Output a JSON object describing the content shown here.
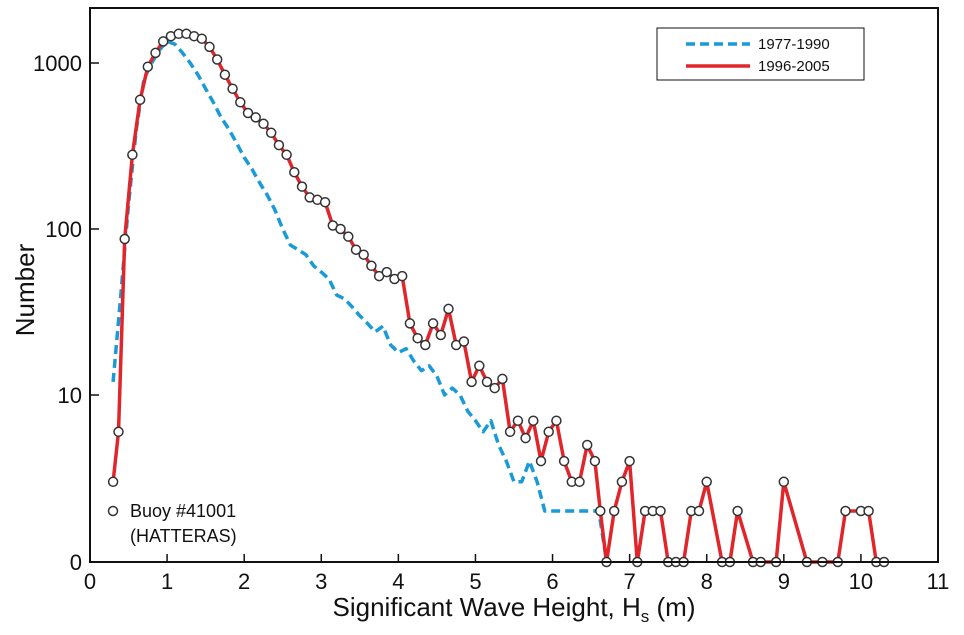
{
  "chart_data": {
    "type": "line",
    "xlabel_main": "Significant Wave Height, H",
    "xlabel_sub": "s",
    "xlabel_unit": " (m)",
    "ylabel": "Number",
    "xlim": [
      0,
      11
    ],
    "x_ticks": [
      0,
      1,
      2,
      3,
      4,
      5,
      6,
      7,
      8,
      9,
      10,
      11
    ],
    "y_scale": "log with zero baseline",
    "y_ticks": [
      {
        "value": 0,
        "label": "0"
      },
      {
        "value": 10,
        "label": "10"
      },
      {
        "value": 100,
        "label": "100"
      },
      {
        "value": 1000,
        "label": "1000"
      }
    ],
    "grid": false,
    "legend": {
      "placement": "top-right"
    },
    "annotation": [
      "Buoy #41001",
      "(HATTERAS)"
    ],
    "colors": {
      "blue": "#1a9ad6",
      "red": "#e0262b",
      "marker_fill": "#ffffff",
      "marker_edge": "#333333",
      "axis": "#111111"
    },
    "series": [
      {
        "name": "1977-1990",
        "style": "dashed",
        "points": [
          [
            0.3,
            12
          ],
          [
            0.4,
            40
          ],
          [
            0.5,
            140
          ],
          [
            0.6,
            400
          ],
          [
            0.7,
            800
          ],
          [
            0.8,
            1000
          ],
          [
            0.9,
            1200
          ],
          [
            1.0,
            1350
          ],
          [
            1.1,
            1300
          ],
          [
            1.2,
            1150
          ],
          [
            1.3,
            1000
          ],
          [
            1.4,
            850
          ],
          [
            1.5,
            700
          ],
          [
            1.6,
            580
          ],
          [
            1.7,
            470
          ],
          [
            1.8,
            400
          ],
          [
            1.9,
            330
          ],
          [
            2.0,
            270
          ],
          [
            2.1,
            230
          ],
          [
            2.2,
            190
          ],
          [
            2.3,
            160
          ],
          [
            2.4,
            130
          ],
          [
            2.5,
            100
          ],
          [
            2.6,
            80
          ],
          [
            2.7,
            75
          ],
          [
            2.8,
            70
          ],
          [
            2.9,
            60
          ],
          [
            3.0,
            55
          ],
          [
            3.1,
            50
          ],
          [
            3.2,
            40
          ],
          [
            3.3,
            38
          ],
          [
            3.4,
            34
          ],
          [
            3.5,
            30
          ],
          [
            3.6,
            27
          ],
          [
            3.7,
            24
          ],
          [
            3.8,
            26
          ],
          [
            3.9,
            20
          ],
          [
            4.0,
            18
          ],
          [
            4.1,
            19
          ],
          [
            4.2,
            16
          ],
          [
            4.3,
            14
          ],
          [
            4.4,
            15
          ],
          [
            4.5,
            13
          ],
          [
            4.6,
            10
          ],
          [
            4.7,
            11
          ],
          [
            4.8,
            10
          ],
          [
            4.9,
            8
          ],
          [
            5.0,
            7
          ],
          [
            5.1,
            6
          ],
          [
            5.2,
            7
          ],
          [
            5.3,
            5
          ],
          [
            5.4,
            4
          ],
          [
            5.5,
            3
          ],
          [
            5.6,
            3
          ],
          [
            5.7,
            4
          ],
          [
            5.8,
            3
          ],
          [
            5.9,
            2
          ],
          [
            6.0,
            2
          ],
          [
            6.1,
            2
          ],
          [
            6.6,
            2
          ],
          [
            6.7,
            1
          ]
        ]
      },
      {
        "name": "1996-2005",
        "style": "solid-with-markers",
        "points": [
          [
            0.3,
            3
          ],
          [
            0.37,
            6
          ],
          [
            0.45,
            87
          ],
          [
            0.55,
            280
          ],
          [
            0.65,
            600
          ],
          [
            0.75,
            950
          ],
          [
            0.85,
            1150
          ],
          [
            0.95,
            1350
          ],
          [
            1.05,
            1450
          ],
          [
            1.15,
            1500
          ],
          [
            1.25,
            1500
          ],
          [
            1.35,
            1450
          ],
          [
            1.45,
            1400
          ],
          [
            1.55,
            1250
          ],
          [
            1.65,
            1050
          ],
          [
            1.75,
            850
          ],
          [
            1.85,
            700
          ],
          [
            1.95,
            580
          ],
          [
            2.05,
            500
          ],
          [
            2.15,
            470
          ],
          [
            2.25,
            430
          ],
          [
            2.35,
            380
          ],
          [
            2.45,
            320
          ],
          [
            2.55,
            280
          ],
          [
            2.65,
            220
          ],
          [
            2.75,
            180
          ],
          [
            2.85,
            155
          ],
          [
            2.95,
            150
          ],
          [
            3.05,
            145
          ],
          [
            3.15,
            105
          ],
          [
            3.25,
            100
          ],
          [
            3.35,
            90
          ],
          [
            3.45,
            75
          ],
          [
            3.55,
            70
          ],
          [
            3.65,
            60
          ],
          [
            3.75,
            52
          ],
          [
            3.85,
            55
          ],
          [
            3.95,
            50
          ],
          [
            4.05,
            52
          ],
          [
            4.15,
            27
          ],
          [
            4.25,
            22
          ],
          [
            4.35,
            20
          ],
          [
            4.45,
            27
          ],
          [
            4.55,
            23
          ],
          [
            4.65,
            33
          ],
          [
            4.75,
            20
          ],
          [
            4.85,
            21
          ],
          [
            4.95,
            12
          ],
          [
            5.05,
            15
          ],
          [
            5.15,
            12
          ],
          [
            5.25,
            11
          ],
          [
            5.35,
            12.5
          ],
          [
            5.45,
            6
          ],
          [
            5.55,
            7
          ],
          [
            5.65,
            5.5
          ],
          [
            5.75,
            7
          ],
          [
            5.85,
            4
          ],
          [
            5.95,
            6
          ],
          [
            6.05,
            7
          ],
          [
            6.15,
            4
          ],
          [
            6.25,
            3
          ],
          [
            6.35,
            3
          ],
          [
            6.45,
            5
          ],
          [
            6.55,
            4
          ],
          [
            6.62,
            2
          ],
          [
            6.7,
            0.5
          ],
          [
            6.8,
            2
          ],
          [
            6.9,
            3
          ],
          [
            7.0,
            4
          ],
          [
            7.1,
            0.5
          ],
          [
            7.2,
            2
          ],
          [
            7.3,
            2
          ],
          [
            7.4,
            2
          ],
          [
            7.5,
            0.5
          ],
          [
            7.6,
            0.5
          ],
          [
            7.7,
            0.5
          ],
          [
            7.8,
            2
          ],
          [
            7.9,
            2
          ],
          [
            8.0,
            3
          ],
          [
            8.2,
            0.5
          ],
          [
            8.3,
            0.5
          ],
          [
            8.4,
            2
          ],
          [
            8.6,
            0.5
          ],
          [
            8.7,
            0.5
          ],
          [
            8.9,
            0.5
          ],
          [
            9.0,
            3
          ],
          [
            9.3,
            0.5
          ],
          [
            9.5,
            0.5
          ],
          [
            9.7,
            0.5
          ],
          [
            9.8,
            2
          ],
          [
            10.0,
            2
          ],
          [
            10.1,
            2
          ],
          [
            10.2,
            0.5
          ],
          [
            10.3,
            0.5
          ]
        ]
      }
    ]
  }
}
